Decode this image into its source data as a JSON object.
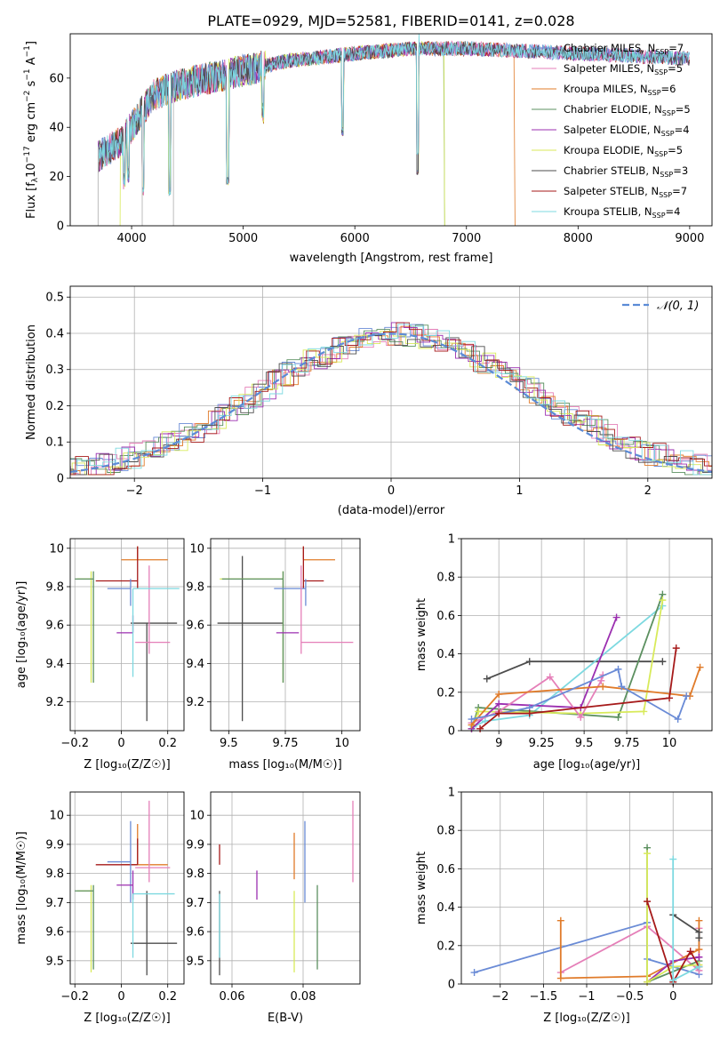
{
  "figure_title": "PLATE=0929, MJD=52581, FIBERID=0141, z=0.028",
  "colors": {
    "ChabrierMILES": "#6a8bd6",
    "SalpeterMILES": "#e57fb8",
    "KroupaMILES": "#e07b2a",
    "ChabrierELODIE": "#5c9060",
    "SalpeterELODIE": "#9b2fb0",
    "KroupaELODIE": "#d8ea5a",
    "ChabrierSTELIB": "#4d4d4d",
    "SalpeterSTELIB": "#a61a1a",
    "KroupaSTELIB": "#7dd9e0"
  },
  "chart_data": [
    {
      "id": "spectrum",
      "type": "line",
      "xlabel": "wavelength [Angstrom, rest frame]",
      "ylabel": "Flux [f",
      "xlim": [
        3450,
        9200
      ],
      "ylim": [
        0,
        78
      ],
      "xticks": [
        4000,
        5000,
        6000,
        7000,
        8000,
        9000
      ],
      "yticks": [
        0,
        20,
        40,
        60
      ],
      "grid": false,
      "legend_position": "top-right",
      "legend": [
        {
          "key": "ChabrierMILES",
          "lib": "Chabrier MILES",
          "n": "7"
        },
        {
          "key": "SalpeterMILES",
          "lib": "Salpeter MILES",
          "n": "5"
        },
        {
          "key": "KroupaMILES",
          "lib": "Kroupa MILES",
          "n": "6"
        },
        {
          "key": "ChabrierELODIE",
          "lib": "Chabrier ELODIE",
          "n": "5"
        },
        {
          "key": "SalpeterELODIE",
          "lib": "Salpeter ELODIE",
          "n": "4"
        },
        {
          "key": "KroupaELODIE",
          "lib": "Kroupa ELODIE",
          "n": "5"
        },
        {
          "key": "ChabrierSTELIB",
          "lib": "Chabrier STELIB",
          "n": "3"
        },
        {
          "key": "SalpeterSTELIB",
          "lib": "Salpeter STELIB",
          "n": "7"
        },
        {
          "key": "KroupaSTELIB",
          "lib": "Kroupa STELIB",
          "n": "4"
        }
      ],
      "continuum": {
        "x": [
          3700,
          3900,
          4000,
          4100,
          4200,
          4400,
          4600,
          4800,
          5000,
          5200,
          5400,
          5600,
          6000,
          6500,
          7000,
          7500,
          8000,
          8500,
          9000
        ],
        "y": [
          28,
          34,
          40,
          47,
          53,
          57,
          59,
          61,
          63,
          65,
          67,
          68,
          70,
          72,
          72,
          71,
          70,
          69,
          68
        ]
      },
      "model_range": {
        "KroupaMILES": [
          3700,
          7430
        ],
        "ChabrierELODIE": [
          3700,
          6800
        ],
        "KroupaELODIE": [
          3900,
          6800
        ],
        "ChabrierMILES": [
          3700,
          9000
        ]
      }
    },
    {
      "id": "residuals",
      "type": "histogram",
      "xlabel": "(data-model)/error",
      "ylabel": "Normed distribution",
      "xlim": [
        -2.5,
        2.5
      ],
      "ylim": [
        0,
        0.53
      ],
      "xticks": [
        -2,
        -1,
        0,
        1,
        2
      ],
      "yticks": [
        0.0,
        0.1,
        0.2,
        0.3,
        0.4,
        0.5
      ],
      "grid": true,
      "legend_position": "top-right",
      "reference_label": "𝒩(0, 1)",
      "reference_color": "#5b8bd6",
      "bins": 50
    },
    {
      "id": "age_vs_Z",
      "type": "errorbar",
      "xlabel": "Z [log₁₀(Z/Z☉)]",
      "ylabel": "age  [log₁₀(age/yr)]",
      "xlim": [
        -0.22,
        0.27
      ],
      "ylim": [
        9.05,
        10.05
      ],
      "xticks": [
        -0.2,
        0.0,
        0.2
      ],
      "yticks": [
        9.2,
        9.4,
        9.6,
        9.8,
        10.0
      ],
      "grid": true,
      "points": [
        {
          "key": "ChabrierSTELIB",
          "x": 0.11,
          "y": 9.61,
          "xerr": [
            0.07,
            0.13
          ],
          "yerr": [
            0.51,
            0.0
          ]
        },
        {
          "key": "KroupaELODIE",
          "x": -0.13,
          "y": 9.84,
          "xerr": [
            0.06,
            0.0
          ],
          "yerr": [
            0.54,
            0.04
          ]
        },
        {
          "key": "ChabrierELODIE",
          "x": -0.12,
          "y": 9.84,
          "xerr": [
            0.08,
            0.0
          ],
          "yerr": [
            0.54,
            0.04
          ]
        },
        {
          "key": "KroupaMILES",
          "x": 0.07,
          "y": 9.94,
          "xerr": [
            0.07,
            0.13
          ],
          "yerr": [
            0.0,
            0.07
          ]
        },
        {
          "key": "SalpeterSTELIB",
          "x": 0.07,
          "y": 9.83,
          "xerr": [
            0.18,
            0.0
          ],
          "yerr": [
            0.04,
            0.18
          ]
        },
        {
          "key": "ChabrierMILES",
          "x": 0.04,
          "y": 9.79,
          "xerr": [
            0.1,
            0.0
          ],
          "yerr": [
            0.09,
            0.05
          ]
        },
        {
          "key": "SalpeterMILES",
          "x": 0.12,
          "y": 9.51,
          "xerr": [
            0.06,
            0.09
          ],
          "yerr": [
            0.06,
            0.4
          ]
        },
        {
          "key": "SalpeterELODIE",
          "x": 0.05,
          "y": 9.56,
          "xerr": [
            0.07,
            0.0
          ],
          "yerr": [
            0.0,
            0.09
          ]
        },
        {
          "key": "KroupaSTELIB",
          "x": 0.05,
          "y": 9.79,
          "xerr": [
            0.0,
            0.2
          ],
          "yerr": [
            0.46,
            0.0
          ]
        }
      ]
    },
    {
      "id": "age_vs_mass",
      "type": "errorbar",
      "xlabel": "mass [log₁₀(M/M☉)]",
      "ylabel": "",
      "xlim": [
        9.42,
        10.08
      ],
      "ylim": [
        9.05,
        10.05
      ],
      "xticks": [
        9.5,
        9.75,
        10.0
      ],
      "ytick_labels": [
        "9.50",
        "9.75",
        "10.00"
      ],
      "yticks": [
        9.2,
        9.4,
        9.6,
        9.8,
        10.0
      ],
      "grid": true,
      "points": [
        {
          "key": "ChabrierSTELIB",
          "x": 9.56,
          "y": 9.61,
          "xerr": [
            0.11,
            0.18
          ],
          "yerr": [
            0.51,
            0.35
          ]
        },
        {
          "key": "KroupaELODIE",
          "x": 9.74,
          "y": 9.84,
          "xerr": [
            0.28,
            0.0
          ],
          "yerr": [
            0.54,
            0.04
          ]
        },
        {
          "key": "ChabrierELODIE",
          "x": 9.74,
          "y": 9.84,
          "xerr": [
            0.27,
            0.0
          ],
          "yerr": [
            0.54,
            0.04
          ]
        },
        {
          "key": "KroupaMILES",
          "x": 9.83,
          "y": 9.94,
          "xerr": [
            0.0,
            0.14
          ],
          "yerr": [
            0.0,
            0.07
          ]
        },
        {
          "key": "SalpeterSTELIB",
          "x": 9.83,
          "y": 9.83,
          "xerr": [
            0.0,
            0.09
          ],
          "yerr": [
            0.04,
            0.18
          ]
        },
        {
          "key": "ChabrierMILES",
          "x": 9.84,
          "y": 9.79,
          "xerr": [
            0.14,
            0.0
          ],
          "yerr": [
            0.09,
            0.05
          ]
        },
        {
          "key": "SalpeterMILES",
          "x": 9.82,
          "y": 9.51,
          "xerr": [
            0.0,
            0.23
          ],
          "yerr": [
            0.06,
            0.4
          ]
        },
        {
          "key": "SalpeterELODIE",
          "x": 9.76,
          "y": 9.56,
          "xerr": [
            0.05,
            0.05
          ],
          "yerr": [
            0.0,
            0.0
          ]
        },
        {
          "key": "KroupaSTELIB",
          "x": 9.82,
          "y": 9.79,
          "xerr": [
            0.0,
            0.0
          ],
          "yerr": [
            0.0,
            0.0
          ]
        }
      ]
    },
    {
      "id": "weight_vs_age",
      "type": "line",
      "xlabel": "age  [log₁₀(age/yr)]",
      "ylabel": "mass weight",
      "xlim": [
        8.78,
        10.25
      ],
      "ylim": [
        0,
        1
      ],
      "xticks": [
        9.0,
        9.25,
        9.5,
        9.75,
        10.0
      ],
      "yticks": [
        0.0,
        0.2,
        0.4,
        0.6,
        0.8,
        1.0
      ],
      "grid": true,
      "series": [
        {
          "key": "ChabrierSTELIB",
          "x": [
            8.93,
            9.18,
            9.96
          ],
          "y": [
            0.27,
            0.36,
            0.36
          ]
        },
        {
          "key": "KroupaSTELIB",
          "x": 8.85,
          "x_list": [
            8.85,
            8.92,
            9.18,
            9.96
          ],
          "y_list": [
            0.02,
            0.05,
            0.08,
            0.65
          ]
        },
        {
          "key": "ChabrierELODIE",
          "x": [
            8.84,
            8.88,
            9.7,
            9.96
          ],
          "y": [
            0.01,
            0.12,
            0.07,
            0.71
          ]
        },
        {
          "key": "KroupaELODIE",
          "x": [
            8.84,
            8.88,
            9.48,
            9.85,
            9.96
          ],
          "y": [
            0.01,
            0.1,
            0.09,
            0.1,
            0.68
          ]
        },
        {
          "key": "SalpeterELODIE",
          "x": [
            8.84,
            9.0,
            9.48,
            9.69
          ],
          "y": [
            0.01,
            0.14,
            0.12,
            0.59
          ]
        },
        {
          "key": "SalpeterMILES",
          "x": [
            8.84,
            9.0,
            9.3,
            9.48,
            9.6,
            9.61
          ],
          "y": [
            0.04,
            0.1,
            0.28,
            0.07,
            0.26,
            0.29
          ]
        },
        {
          "key": "KroupaMILES",
          "x": [
            8.84,
            9.0,
            9.61,
            10.12,
            10.18
          ],
          "y": [
            0.03,
            0.19,
            0.23,
            0.18,
            0.33
          ]
        },
        {
          "key": "ChabrierMILES",
          "x": [
            8.84,
            9.18,
            9.7,
            9.72,
            10.05,
            10.1
          ],
          "y": [
            0.06,
            0.12,
            0.32,
            0.23,
            0.06,
            0.18
          ]
        },
        {
          "key": "SalpeterSTELIB",
          "x": [
            8.89,
            9.0,
            9.18,
            10.0,
            10.04
          ],
          "y": [
            0.01,
            0.09,
            0.09,
            0.17,
            0.43
          ]
        }
      ]
    },
    {
      "id": "mass_vs_Z",
      "type": "errorbar",
      "xlabel": "Z [log₁₀(Z/Z☉)]",
      "ylabel": "mass [log₁₀(M/M☉)]",
      "xlim": [
        -0.22,
        0.27
      ],
      "ylim": [
        9.42,
        10.08
      ],
      "xticks": [
        -0.2,
        0.0,
        0.2
      ],
      "yticks": [
        9.5,
        9.6,
        9.7,
        9.8,
        9.9,
        10.0
      ],
      "grid": true,
      "points": [
        {
          "key": "ChabrierSTELIB",
          "x": 0.11,
          "y": 9.56,
          "xerr": [
            0.07,
            0.13
          ],
          "yerr": [
            0.11,
            0.18
          ]
        },
        {
          "key": "KroupaELODIE",
          "x": -0.13,
          "y": 9.74,
          "xerr": [
            0.06,
            0.0
          ],
          "yerr": [
            0.28,
            0.02
          ]
        },
        {
          "key": "ChabrierELODIE",
          "x": -0.12,
          "y": 9.74,
          "xerr": [
            0.08,
            0.0
          ],
          "yerr": [
            0.27,
            0.02
          ]
        },
        {
          "key": "KroupaMILES",
          "x": 0.07,
          "y": 9.83,
          "xerr": [
            0.07,
            0.13
          ],
          "yerr": [
            0.0,
            0.14
          ]
        },
        {
          "key": "SalpeterSTELIB",
          "x": 0.07,
          "y": 9.83,
          "xerr": [
            0.18,
            0.0
          ],
          "yerr": [
            0.0,
            0.09
          ]
        },
        {
          "key": "ChabrierMILES",
          "x": 0.04,
          "y": 9.84,
          "xerr": [
            0.1,
            0.0
          ],
          "yerr": [
            0.14,
            0.14
          ]
        },
        {
          "key": "SalpeterMILES",
          "x": 0.12,
          "y": 9.82,
          "xerr": [
            0.06,
            0.09
          ],
          "yerr": [
            0.05,
            0.23
          ]
        },
        {
          "key": "SalpeterELODIE",
          "x": 0.05,
          "y": 9.76,
          "xerr": [
            0.07,
            0.0
          ],
          "yerr": [
            0.05,
            0.05
          ]
        },
        {
          "key": "KroupaSTELIB",
          "x": 0.05,
          "y": 9.73,
          "xerr": [
            0.0,
            0.18
          ],
          "yerr": [
            0.22,
            0.0
          ]
        }
      ]
    },
    {
      "id": "mass_vs_EBV",
      "type": "errorbar",
      "xlabel": "E(B-V)",
      "ylabel": "",
      "xlim": [
        0.054,
        0.096
      ],
      "ylim": [
        9.42,
        10.08
      ],
      "xticks": [
        0.06,
        0.08
      ],
      "yticks": [
        9.5,
        9.6,
        9.7,
        9.8,
        9.9,
        10.0
      ],
      "grid": true,
      "points": [
        {
          "key": "ChabrierSTELIB",
          "x": 0.0565,
          "y": 9.56,
          "yerr": [
            0.11,
            0.18
          ]
        },
        {
          "key": "SalpeterSTELIB",
          "x": 0.0565,
          "y": 9.83,
          "yerr": [
            0.0,
            0.07
          ]
        },
        {
          "key": "KroupaSTELIB",
          "x": 0.0565,
          "y": 9.73,
          "yerr": [
            0.22,
            0.0
          ]
        },
        {
          "key": "SalpeterELODIE",
          "x": 0.067,
          "y": 9.76,
          "yerr": [
            0.05,
            0.05
          ]
        },
        {
          "key": "KroupaMILES",
          "x": 0.0775,
          "y": 9.83,
          "yerr": [
            0.05,
            0.11
          ]
        },
        {
          "key": "KroupaELODIE",
          "x": 0.0775,
          "y": 9.74,
          "yerr": [
            0.28,
            0.0
          ]
        },
        {
          "key": "ChabrierMILES",
          "x": 0.0805,
          "y": 9.84,
          "yerr": [
            0.14,
            0.14
          ]
        },
        {
          "key": "ChabrierELODIE",
          "x": 0.084,
          "y": 9.74,
          "yerr": [
            0.27,
            0.02
          ]
        },
        {
          "key": "SalpeterMILES",
          "x": 0.094,
          "y": 9.82,
          "yerr": [
            0.05,
            0.23
          ]
        }
      ]
    },
    {
      "id": "weight_vs_Z",
      "type": "line",
      "xlabel": "Z [log₁₀(Z/Z☉)]",
      "ylabel": "mass weight",
      "xlim": [
        -2.45,
        0.45
      ],
      "ylim": [
        0,
        1
      ],
      "xticks": [
        -2.0,
        -1.5,
        -1.0,
        -0.5,
        0.0
      ],
      "yticks": [
        0.0,
        0.2,
        0.4,
        0.6,
        0.8,
        1.0
      ],
      "grid": true,
      "series": [
        {
          "key": "ChabrierMILES",
          "x": [
            -2.3,
            -0.3,
            -0.3,
            0.3
          ],
          "y": [
            0.06,
            0.32,
            0.13,
            0.05
          ]
        },
        {
          "key": "SalpeterMILES",
          "x": [
            -1.3,
            -0.3,
            0.3,
            0.3
          ],
          "y": [
            0.06,
            0.3,
            0.07,
            0.29
          ]
        },
        {
          "key": "KroupaMILES",
          "x": [
            -1.3,
            -1.3,
            -0.3,
            0.3,
            0.3
          ],
          "y": [
            0.33,
            0.03,
            0.04,
            0.18,
            0.33
          ]
        },
        {
          "key": "ChabrierELODIE",
          "x": [
            -0.3,
            -0.3,
            0.3
          ],
          "y": [
            0.71,
            0.01,
            0.12
          ]
        },
        {
          "key": "SalpeterELODIE",
          "x": [
            -0.3,
            0.0,
            0.3
          ],
          "y": [
            0.01,
            0.12,
            0.14
          ]
        },
        {
          "key": "KroupaELODIE",
          "x": [
            -0.3,
            -0.3,
            0.0,
            0.3
          ],
          "y": [
            0.68,
            0.01,
            0.09,
            0.1
          ]
        },
        {
          "key": "ChabrierSTELIB",
          "x": [
            0.0,
            0.3,
            0.3
          ],
          "y": [
            0.36,
            0.27,
            0.24
          ]
        },
        {
          "key": "SalpeterSTELIB",
          "x": [
            -0.3,
            0.0,
            0.2,
            0.3
          ],
          "y": [
            0.43,
            0.01,
            0.17,
            0.09
          ]
        },
        {
          "key": "KroupaSTELIB",
          "x": [
            0.0,
            0.0,
            0.3
          ],
          "y": [
            0.65,
            0.02,
            0.09
          ]
        }
      ]
    }
  ]
}
